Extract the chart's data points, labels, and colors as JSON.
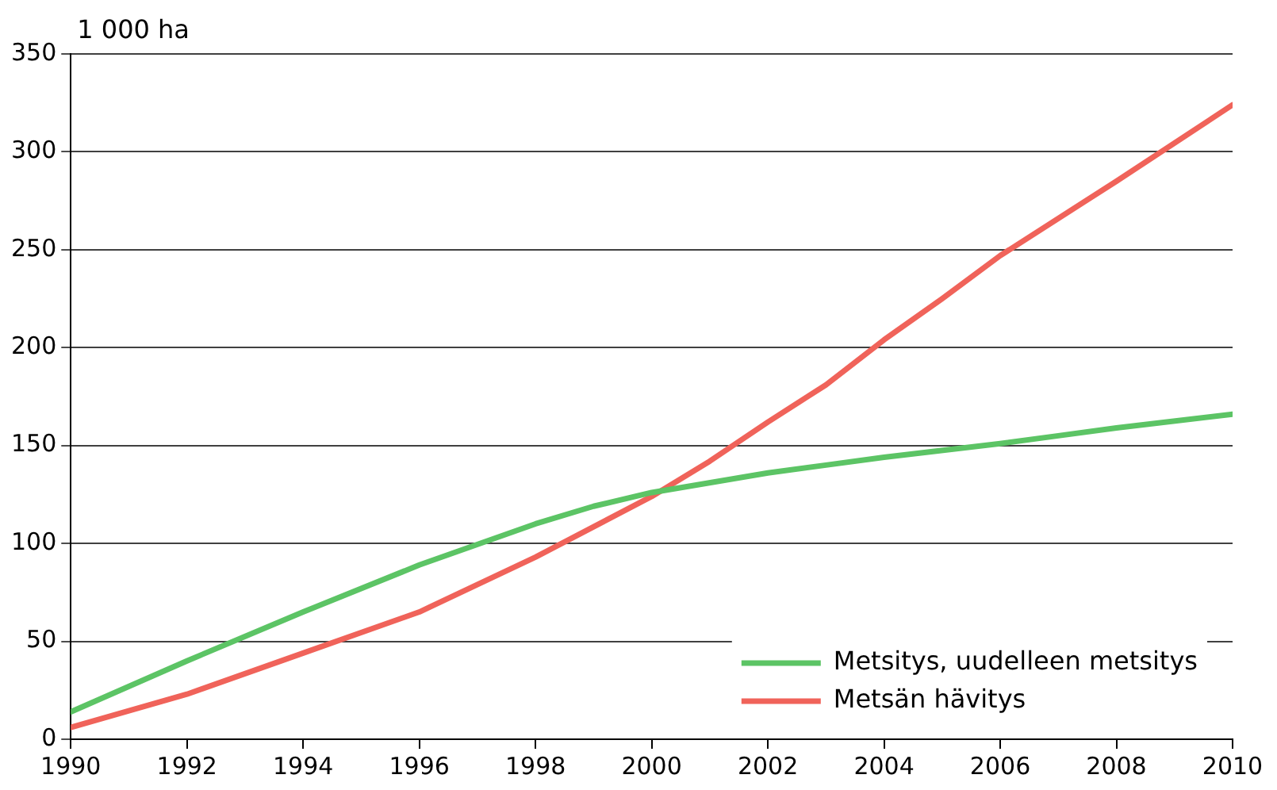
{
  "chart_data": {
    "type": "line",
    "ylabel": "1 000 ha",
    "xlim": [
      1990,
      2010
    ],
    "xticks": [
      1990,
      1992,
      1994,
      1996,
      1998,
      2000,
      2002,
      2004,
      2006,
      2008,
      2010
    ],
    "ylim": [
      0,
      350
    ],
    "yticks": [
      0,
      50,
      100,
      150,
      200,
      250,
      300,
      350
    ],
    "grid": "y",
    "legend": "bottom right",
    "marker": "none",
    "line_style": "solid",
    "series": [
      {
        "name": "Metsitys, uudelleen metsitys",
        "color": "#5cc465",
        "x": [
          1990,
          1992,
          1994,
          1996,
          1998,
          1999,
          2000,
          2002,
          2003,
          2004,
          2006,
          2007,
          2008,
          2010
        ],
        "values": [
          14,
          40,
          65,
          89,
          110,
          119,
          126,
          136,
          140,
          144,
          151,
          155,
          159,
          166
        ]
      },
      {
        "name": "Metsän hävitys",
        "color": "#f0635a",
        "x": [
          1990,
          1992,
          1994,
          1996,
          1998,
          2000,
          2001,
          2002,
          2003,
          2004,
          2005,
          2006,
          2008,
          2010
        ],
        "values": [
          6,
          23,
          44,
          65,
          93,
          124,
          142,
          162,
          181,
          204,
          225,
          247,
          285,
          324
        ]
      }
    ]
  }
}
